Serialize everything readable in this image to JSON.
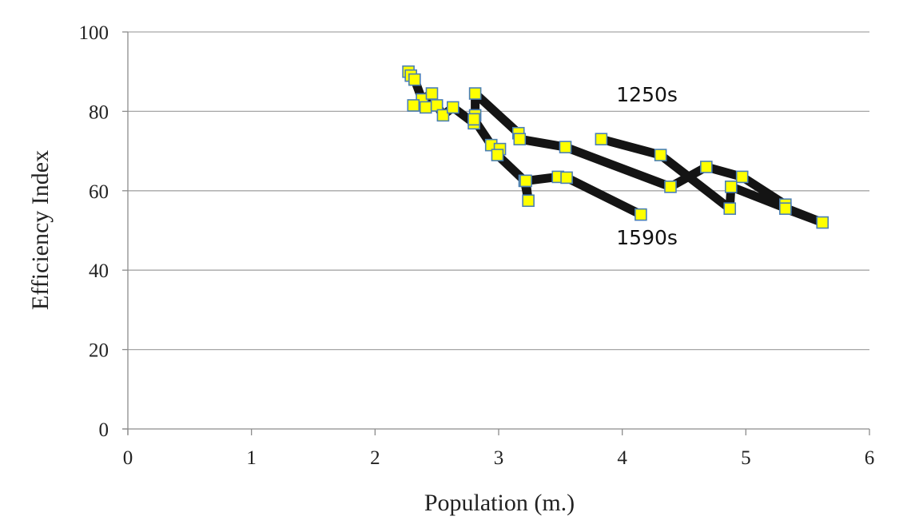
{
  "chart_data": {
    "type": "scatter",
    "xlabel": "Population (m.)",
    "ylabel": "Efficiency Index",
    "xlim": [
      0,
      6
    ],
    "ylim": [
      0,
      100
    ],
    "x_ticks": [
      "0",
      "1",
      "2",
      "3",
      "4",
      "5",
      "6"
    ],
    "y_ticks": [
      "0",
      "20",
      "40",
      "60",
      "80",
      "100"
    ],
    "grid": "horizontal",
    "marker_color": "#ffff00",
    "marker_edge_color": "#4a7fb5",
    "line_color": "#141414",
    "annotations": [
      {
        "text": "1250s",
        "x": 4.2,
        "y": 82.5
      },
      {
        "text": "1590s",
        "x": 4.2,
        "y": 46.5
      }
    ],
    "series": [
      {
        "points": [
          [
            2.27,
            90
          ],
          [
            2.29,
            89
          ],
          [
            2.32,
            88
          ],
          [
            2.38,
            83
          ],
          [
            2.46,
            84.5
          ],
          [
            2.41,
            81
          ],
          [
            2.31,
            81.5
          ],
          [
            2.5,
            81.5
          ],
          [
            2.55,
            79
          ],
          [
            2.63,
            81
          ],
          [
            2.8,
            77
          ],
          [
            2.81,
            79
          ],
          [
            2.81,
            84.5
          ],
          [
            3.16,
            74.5
          ],
          [
            3.17,
            73
          ],
          [
            3.54,
            71
          ],
          [
            4.39,
            61
          ],
          [
            4.68,
            66
          ],
          [
            4.97,
            63.5
          ],
          [
            5.32,
            56.5
          ],
          [
            5.32,
            55.5
          ],
          [
            5.62,
            52
          ],
          [
            4.88,
            61
          ],
          [
            4.87,
            55.5
          ],
          [
            4.31,
            69
          ],
          [
            3.83,
            73
          ]
        ]
      },
      {
        "points": [
          [
            2.8,
            78
          ],
          [
            2.94,
            71.5
          ],
          [
            3.01,
            70.5
          ],
          [
            2.99,
            69
          ],
          [
            3.21,
            62.5
          ],
          [
            3.24,
            57.5
          ],
          [
            3.22,
            62.5
          ],
          [
            3.48,
            63.5
          ],
          [
            3.55,
            63.3
          ],
          [
            4.15,
            54
          ]
        ]
      }
    ]
  }
}
